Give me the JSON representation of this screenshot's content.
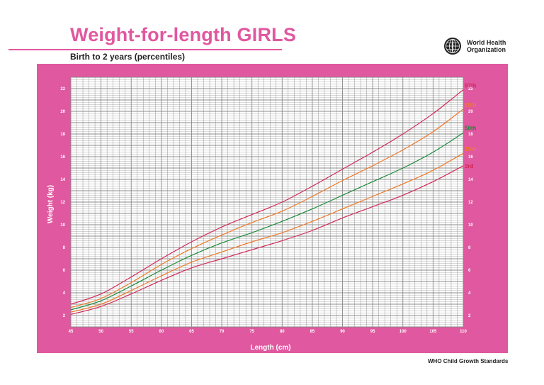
{
  "header": {
    "title": "Weight-for-length GIRLS",
    "subtitle": "Birth to 2 years (percentiles)",
    "org_line1": "World Health",
    "org_line2": "Organization",
    "emblem_icon": "who-globe-emblem-icon"
  },
  "footer": {
    "text": "WHO Child Growth Standards"
  },
  "colors": {
    "title": "#e0589f",
    "frame": "#e0589f",
    "grid": "#8a8a8a",
    "p97": "#d22a5a",
    "p85": "#ef7a2a",
    "p50": "#1c8a3a",
    "p15": "#ef7a2a",
    "p3": "#d22a5a"
  },
  "chart_data": {
    "type": "line",
    "xlabel": "Length (cm)",
    "ylabel": "Weight (kg)",
    "xlim": [
      45,
      110
    ],
    "ylim": [
      1,
      23
    ],
    "x_ticks": [
      45,
      50,
      55,
      60,
      65,
      70,
      75,
      80,
      85,
      90,
      95,
      100,
      105,
      110
    ],
    "y_ticks": [
      2,
      4,
      6,
      8,
      10,
      12,
      14,
      16,
      18,
      20,
      22
    ],
    "grid": true,
    "legend": "labels at right end of lines",
    "x": [
      45,
      50,
      55,
      60,
      65,
      70,
      75,
      80,
      85,
      90,
      95,
      100,
      105,
      110
    ],
    "series": [
      {
        "name": "97th",
        "key": "p97",
        "values": [
          3.0,
          3.9,
          5.4,
          7.0,
          8.5,
          9.8,
          10.9,
          12.0,
          13.4,
          14.9,
          16.4,
          18.0,
          19.8,
          21.9
        ]
      },
      {
        "name": "85th",
        "key": "p85",
        "values": [
          2.7,
          3.5,
          4.9,
          6.5,
          7.9,
          9.1,
          10.2,
          11.2,
          12.5,
          13.9,
          15.2,
          16.6,
          18.2,
          20.2
        ]
      },
      {
        "name": "50th",
        "key": "p50",
        "values": [
          2.5,
          3.3,
          4.6,
          6.0,
          7.3,
          8.4,
          9.3,
          10.3,
          11.4,
          12.6,
          13.8,
          15.0,
          16.4,
          18.1
        ]
      },
      {
        "name": "15th",
        "key": "p15",
        "values": [
          2.3,
          3.0,
          4.2,
          5.5,
          6.7,
          7.6,
          8.5,
          9.3,
          10.3,
          11.4,
          12.5,
          13.6,
          14.8,
          16.3
        ]
      },
      {
        "name": "3rd",
        "key": "p3",
        "values": [
          2.1,
          2.8,
          3.9,
          5.1,
          6.2,
          7.0,
          7.8,
          8.6,
          9.5,
          10.6,
          11.6,
          12.6,
          13.8,
          15.2
        ]
      }
    ]
  }
}
